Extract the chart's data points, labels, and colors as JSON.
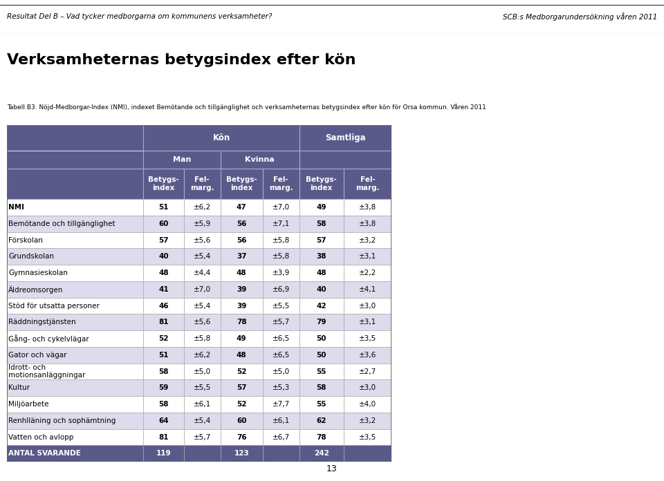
{
  "header_top": "Resultat Del B – Vad tycker medborgarna om kommunens verksamheter?",
  "header_right": "SCB:s Medborgarundersökning våren 2011",
  "title": "Verksamheternas betygsindex efter kön",
  "subtitle": "Tabell B3. Nöjd-Medborgar-Index (NMI), indexet Bemötande och tillgänglighet och verksamheternas betygsindex efter kön för Orsa kommun. Våren 2011",
  "page_number": "13",
  "header_bg": "#5a5a8a",
  "header_text": "#ffffff",
  "row_bg_light": "#ffffff",
  "row_bg_dark": "#e8e8f0",
  "border_color": "#333333",
  "col_header_bg": "#5a5a8a",
  "rows": [
    {
      "label": "NMI",
      "man_idx": "51",
      "man_fel": "±6,2",
      "kv_idx": "47",
      "kv_fel": "±7,0",
      "sam_idx": "49",
      "sam_fel": "±3,8",
      "bold_label": true
    },
    {
      "label": "Bemötande och tillgänglighet",
      "man_idx": "60",
      "man_fel": "±5,9",
      "kv_idx": "56",
      "kv_fel": "±7,1",
      "sam_idx": "58",
      "sam_fel": "±3,8",
      "bold_label": false
    },
    {
      "label": "Förskolan",
      "man_idx": "57",
      "man_fel": "±5,6",
      "kv_idx": "56",
      "kv_fel": "±5,8",
      "sam_idx": "57",
      "sam_fel": "±3,2",
      "bold_label": false
    },
    {
      "label": "Grundskolan",
      "man_idx": "40",
      "man_fel": "±5,4",
      "kv_idx": "37",
      "kv_fel": "±5,8",
      "sam_idx": "38",
      "sam_fel": "±3,1",
      "bold_label": false
    },
    {
      "label": "Gymnasieskolan",
      "man_idx": "48",
      "man_fel": "±4,4",
      "kv_idx": "48",
      "kv_fel": "±3,9",
      "sam_idx": "48",
      "sam_fel": "±2,2",
      "bold_label": false
    },
    {
      "label": "Äldreomsorgen",
      "man_idx": "41",
      "man_fel": "±7,0",
      "kv_idx": "39",
      "kv_fel": "±6,9",
      "sam_idx": "40",
      "sam_fel": "±4,1",
      "bold_label": false
    },
    {
      "label": "Stöd för utsatta personer",
      "man_idx": "46",
      "man_fel": "±5,4",
      "kv_idx": "39",
      "kv_fel": "±5,5",
      "sam_idx": "42",
      "sam_fel": "±3,0",
      "bold_label": false
    },
    {
      "label": "Räddningstjänsten",
      "man_idx": "81",
      "man_fel": "±5,6",
      "kv_idx": "78",
      "kv_fel": "±5,7",
      "sam_idx": "79",
      "sam_fel": "±3,1",
      "bold_label": false
    },
    {
      "label": "Gång- och cykelvlägar",
      "man_idx": "52",
      "man_fel": "±5,8",
      "kv_idx": "49",
      "kv_fel": "±6,5",
      "sam_idx": "50",
      "sam_fel": "±3,5",
      "bold_label": false
    },
    {
      "label": "Gator och vägar",
      "man_idx": "51",
      "man_fel": "±6,2",
      "kv_idx": "48",
      "kv_fel": "±6,5",
      "sam_idx": "50",
      "sam_fel": "±3,6",
      "bold_label": false
    },
    {
      "label": "Idrott- och\nmotionsanläggningar",
      "man_idx": "58",
      "man_fel": "±5,0",
      "kv_idx": "52",
      "kv_fel": "±5,0",
      "sam_idx": "55",
      "sam_fel": "±2,7",
      "bold_label": false
    },
    {
      "label": "Kultur",
      "man_idx": "59",
      "man_fel": "±5,5",
      "kv_idx": "57",
      "kv_fel": "±5,3",
      "sam_idx": "58",
      "sam_fel": "±3,0",
      "bold_label": false
    },
    {
      "label": "Miljöarbete",
      "man_idx": "58",
      "man_fel": "±6,1",
      "kv_idx": "52",
      "kv_fel": "±7,7",
      "sam_idx": "55",
      "sam_fel": "±4,0",
      "bold_label": false
    },
    {
      "label": "Renhlläning och sophämtning",
      "man_idx": "64",
      "man_fel": "±5,4",
      "kv_idx": "60",
      "kv_fel": "±6,1",
      "sam_idx": "62",
      "sam_fel": "±3,2",
      "bold_label": false
    },
    {
      "label": "Vatten och avlopp",
      "man_idx": "81",
      "man_fel": "±5,7",
      "kv_idx": "76",
      "kv_fel": "±6,7",
      "sam_idx": "78",
      "sam_fel": "±3,5",
      "bold_label": false
    },
    {
      "label": "ANTAL SVARANDE",
      "man_idx": "119",
      "man_fel": "",
      "kv_idx": "123",
      "kv_fel": "",
      "sam_idx": "242",
      "sam_fel": "",
      "bold_label": true
    }
  ]
}
